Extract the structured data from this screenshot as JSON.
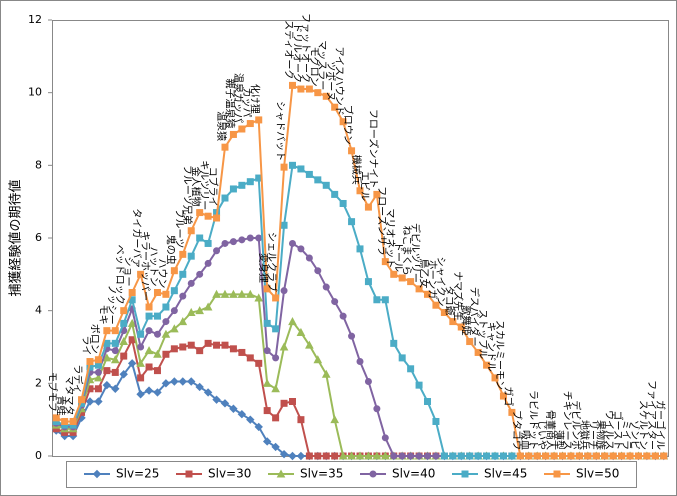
{
  "chart_data": {
    "type": "line",
    "y_label": "捕獲経験値の期待値",
    "categories": [
      "モブモフ",
      "青蛙",
      "マタマタ",
      "ラディ",
      "ライ",
      "ボロン",
      "モキ",
      "ノッシー",
      "ベッドロック",
      "ショー",
      "タイガーバァ",
      "キラーホッパー",
      "ハットン",
      "ハウン",
      "鬼の虫",
      "フルーツ",
      "フルーツ兄弟",
      "金人植物",
      "キルツリー",
      "コブライ",
      "温泉猿",
      "親子温泉猿",
      "温泉ガッパ",
      "カッパ",
      "化け狸",
      "変身狸",
      "シェルクラブ",
      "シャドバット",
      "スティオーク",
      "ドリルオーク",
      "ファットオーク",
      "モグロン",
      "マッスラー",
      "ツボーヌ",
      "アイスハウンド",
      "ブロウン",
      "機械兵",
      "エビル",
      "フローズンナイト",
      "フローズンサラ",
      "マリオネット",
      "ドール",
      "ねこまくら",
      "デビルツリー",
      "鳥乙女",
      "ホーンガ",
      "シャイクン",
      "タコ爺",
      "ナマズ先生",
      "歌舞姫",
      "デスパイダー",
      "ストップル",
      "キャンドル",
      "スカルミーモン",
      "ガゴ",
      "ブタゴウ",
      "吸血",
      "ラビルドット",
      "じいや",
      "骨董商人",
      "薄型",
      "チキンレース",
      "デビルンボ",
      "地獄兵",
      "リーチ",
      "果物族",
      "ウイルス",
      "ゴースト",
      "ミイラ",
      "ゾンビ",
      "スケルトン",
      "ファイアスター",
      "ガーゴイル"
    ],
    "series": [
      {
        "name": "Slv=25",
        "color": "#4f81bd",
        "marker": "diamond",
        "values": [
          0.7,
          0.55,
          0.55,
          1.05,
          1.5,
          1.5,
          1.95,
          1.85,
          2.25,
          2.55,
          1.7,
          1.8,
          1.75,
          2.0,
          2.05,
          2.05,
          2.05,
          1.9,
          1.75,
          1.55,
          1.45,
          1.3,
          1.15,
          1.0,
          0.8,
          0.4,
          0.25,
          0.05,
          0,
          0,
          0,
          0,
          0,
          0,
          0,
          0,
          0,
          0,
          0,
          0,
          0,
          0,
          0,
          0,
          0,
          0,
          0,
          0,
          0,
          0,
          0,
          0,
          0,
          0,
          0,
          0,
          0,
          0,
          0,
          0,
          0,
          0,
          0,
          0,
          0,
          0,
          0,
          0,
          0,
          0,
          0,
          0,
          0
        ]
      },
      {
        "name": "Slv=30",
        "color": "#c0504d",
        "marker": "square",
        "values": [
          0.75,
          0.65,
          0.65,
          1.2,
          1.85,
          1.85,
          2.35,
          2.3,
          2.75,
          3.2,
          2.15,
          2.45,
          2.35,
          2.8,
          2.95,
          3.0,
          3.05,
          2.9,
          3.1,
          3.05,
          3.05,
          2.95,
          2.85,
          2.7,
          2.55,
          1.25,
          1.05,
          1.45,
          1.5,
          1.0,
          0,
          0,
          0,
          0,
          0,
          0,
          0,
          0,
          0,
          0,
          0,
          0,
          0,
          0,
          0,
          0,
          0,
          0,
          0,
          0,
          0,
          0,
          0,
          0,
          0,
          0,
          0,
          0,
          0,
          0,
          0,
          0,
          0,
          0,
          0,
          0,
          0,
          0,
          0,
          0,
          0,
          0,
          0
        ]
      },
      {
        "name": "Slv=35",
        "color": "#9bbb59",
        "marker": "triangle",
        "values": [
          0.85,
          0.75,
          0.75,
          1.3,
          2.1,
          2.15,
          2.7,
          2.65,
          3.15,
          3.65,
          2.55,
          2.9,
          2.8,
          3.35,
          3.5,
          3.7,
          3.95,
          4.0,
          4.1,
          4.45,
          4.45,
          4.45,
          4.45,
          4.45,
          4.35,
          2.0,
          1.85,
          3.0,
          3.7,
          3.4,
          3.05,
          2.65,
          2.25,
          1.0,
          0,
          0,
          0,
          0,
          0,
          0,
          0,
          0,
          0,
          0,
          0,
          0,
          0,
          0,
          0,
          0,
          0,
          0,
          0,
          0,
          0,
          0,
          0,
          0,
          0,
          0,
          0,
          0,
          0,
          0,
          0,
          0,
          0,
          0,
          0,
          0,
          0,
          0,
          0
        ]
      },
      {
        "name": "Slv=40",
        "color": "#8064a2",
        "marker": "circle",
        "values": [
          0.9,
          0.8,
          0.8,
          1.4,
          2.3,
          2.3,
          2.95,
          2.9,
          3.45,
          4.05,
          3.0,
          3.45,
          3.35,
          3.7,
          4.0,
          4.4,
          4.75,
          5.0,
          5.3,
          5.65,
          5.85,
          5.9,
          5.95,
          6.0,
          6.0,
          2.9,
          2.7,
          4.55,
          5.85,
          5.7,
          5.45,
          5.1,
          4.65,
          4.25,
          3.85,
          3.3,
          2.6,
          2.05,
          1.3,
          0.5,
          0,
          0,
          0,
          0,
          0,
          0,
          0,
          0,
          0,
          0,
          0,
          0,
          0,
          0,
          0,
          0,
          0,
          0,
          0,
          0,
          0,
          0,
          0,
          0,
          0,
          0,
          0,
          0,
          0,
          0,
          0,
          0,
          0
        ]
      },
      {
        "name": "Slv=45",
        "color": "#4bacc6",
        "marker": "square",
        "values": [
          0.95,
          0.85,
          0.85,
          1.45,
          2.45,
          2.5,
          3.1,
          3.1,
          3.65,
          4.3,
          3.35,
          3.85,
          3.85,
          4.1,
          4.55,
          5.0,
          5.5,
          6.0,
          5.85,
          6.7,
          7.1,
          7.35,
          7.45,
          7.55,
          7.65,
          3.65,
          3.5,
          6.35,
          8.0,
          7.9,
          7.75,
          7.6,
          7.45,
          7.2,
          6.95,
          6.45,
          5.7,
          4.8,
          4.3,
          4.3,
          3.1,
          2.7,
          2.4,
          1.95,
          1.5,
          0.95,
          0,
          0,
          0,
          0,
          0,
          0,
          0,
          0,
          0,
          0,
          0,
          0,
          0,
          0,
          0,
          0,
          0,
          0,
          0,
          0,
          0,
          0,
          0,
          0,
          0,
          0,
          0
        ]
      },
      {
        "name": "Slv=50",
        "color": "#f79646",
        "marker": "square",
        "values": [
          1.05,
          0.95,
          0.95,
          1.55,
          2.6,
          2.65,
          3.45,
          3.45,
          4.0,
          4.5,
          5.0,
          4.1,
          4.5,
          4.45,
          5.1,
          5.55,
          6.2,
          6.7,
          6.6,
          6.55,
          8.5,
          8.85,
          9.0,
          9.15,
          9.25,
          4.6,
          4.35,
          7.95,
          10.2,
          10.1,
          10.1,
          10.0,
          9.9,
          9.6,
          9.2,
          8.4,
          7.3,
          6.85,
          7.2,
          5.35,
          5.0,
          4.9,
          4.8,
          4.6,
          4.45,
          4.15,
          3.95,
          3.7,
          3.55,
          3.15,
          2.85,
          2.5,
          2.15,
          1.65,
          1.2,
          0,
          0,
          0,
          0,
          0,
          0,
          0,
          0,
          0,
          0,
          0,
          0,
          0,
          0,
          0,
          0,
          0,
          0
        ]
      }
    ],
    "ylim": [
      0,
      12
    ],
    "yticks": [
      0,
      2,
      4,
      6,
      8,
      10,
      12
    ],
    "grid": false,
    "legend": "bottom"
  }
}
